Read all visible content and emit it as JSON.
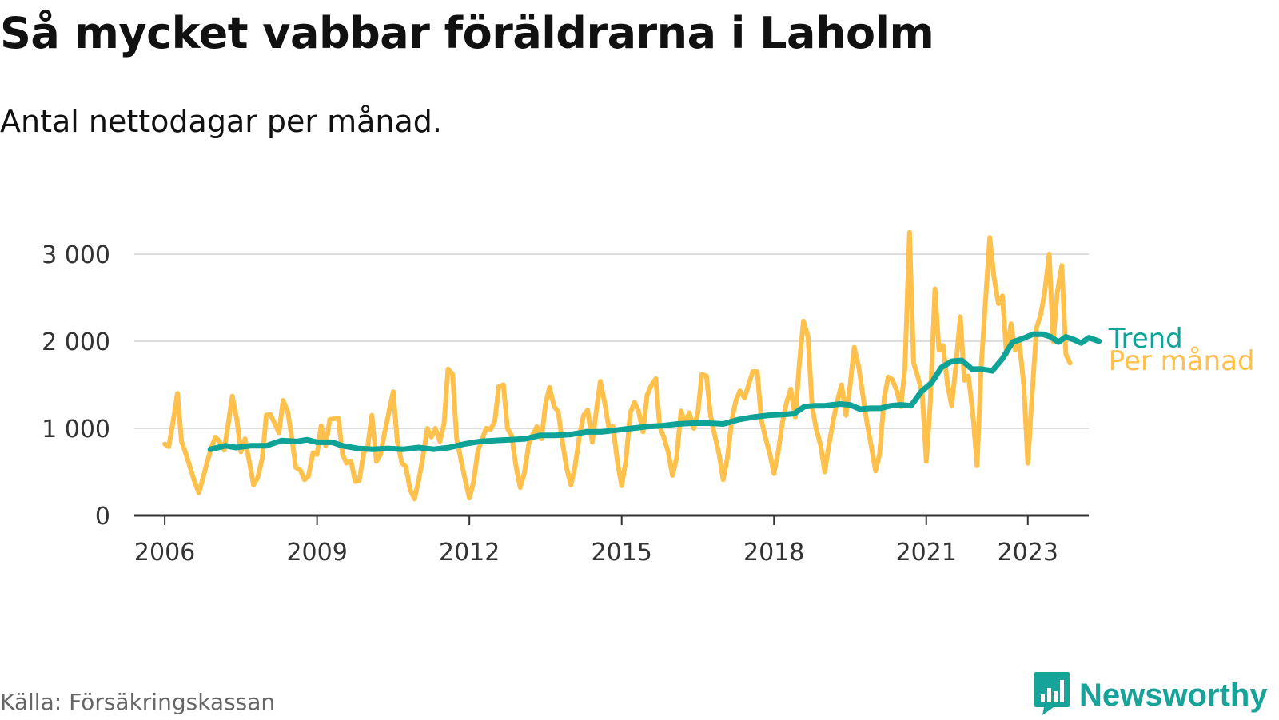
{
  "title": "Så mycket vabbar föräldrarna i Laholm",
  "subtitle": "Antal nettodagar per månad.",
  "source": "Källa: Försäkringskassan",
  "brand": {
    "name": "Newsworthy",
    "icon": "newsworthy-logo-icon",
    "color": "#16a39a"
  },
  "colors": {
    "monthly": "#ffc04c",
    "trend": "#0fa296",
    "grid": "#dddddd",
    "axis": "#333333"
  },
  "chart_data": {
    "type": "line",
    "title": "Så mycket vabbar föräldrarna i Laholm",
    "subtitle": "Antal nettodagar per månad.",
    "xlabel": "",
    "ylabel": "",
    "xlim": [
      2005.4,
      2024.2
    ],
    "ylim": [
      0,
      3000
    ],
    "x_ticks": [
      2006,
      2009,
      2012,
      2015,
      2018,
      2021,
      2023
    ],
    "x_tick_labels": [
      "2006",
      "2009",
      "2012",
      "2015",
      "2018",
      "2021",
      "2023"
    ],
    "y_ticks": [
      0,
      1000,
      2000,
      3000
    ],
    "y_tick_labels": [
      "0",
      "1 000",
      "2 000",
      "3 000"
    ],
    "grid": true,
    "series": [
      {
        "name": "Per månad",
        "color": "#ffc04c",
        "points": [
          [
            2006.0,
            820
          ],
          [
            2006.08,
            790
          ],
          [
            2006.17,
            1100
          ],
          [
            2006.25,
            1400
          ],
          [
            2006.33,
            850
          ],
          [
            2006.42,
            700
          ],
          [
            2006.5,
            550
          ],
          [
            2006.58,
            400
          ],
          [
            2006.67,
            260
          ],
          [
            2006.75,
            420
          ],
          [
            2006.83,
            600
          ],
          [
            2006.92,
            780
          ],
          [
            2007.0,
            900
          ],
          [
            2007.08,
            850
          ],
          [
            2007.17,
            750
          ],
          [
            2007.25,
            1050
          ],
          [
            2007.33,
            1370
          ],
          [
            2007.42,
            1100
          ],
          [
            2007.5,
            730
          ],
          [
            2007.58,
            880
          ],
          [
            2007.67,
            600
          ],
          [
            2007.75,
            350
          ],
          [
            2007.83,
            430
          ],
          [
            2007.92,
            650
          ],
          [
            2008.0,
            1150
          ],
          [
            2008.08,
            1160
          ],
          [
            2008.17,
            1050
          ],
          [
            2008.25,
            950
          ],
          [
            2008.33,
            1320
          ],
          [
            2008.42,
            1200
          ],
          [
            2008.5,
            900
          ],
          [
            2008.58,
            550
          ],
          [
            2008.67,
            520
          ],
          [
            2008.75,
            410
          ],
          [
            2008.83,
            450
          ],
          [
            2008.92,
            720
          ],
          [
            2009.0,
            700
          ],
          [
            2009.08,
            1030
          ],
          [
            2009.17,
            800
          ],
          [
            2009.25,
            1100
          ],
          [
            2009.33,
            1110
          ],
          [
            2009.42,
            1120
          ],
          [
            2009.5,
            700
          ],
          [
            2009.58,
            600
          ],
          [
            2009.67,
            620
          ],
          [
            2009.75,
            390
          ],
          [
            2009.83,
            400
          ],
          [
            2009.92,
            720
          ],
          [
            2010.0,
            800
          ],
          [
            2010.08,
            1150
          ],
          [
            2010.17,
            620
          ],
          [
            2010.25,
            700
          ],
          [
            2010.33,
            950
          ],
          [
            2010.42,
            1200
          ],
          [
            2010.5,
            1420
          ],
          [
            2010.58,
            850
          ],
          [
            2010.67,
            600
          ],
          [
            2010.75,
            560
          ],
          [
            2010.83,
            300
          ],
          [
            2010.92,
            190
          ],
          [
            2011.0,
            400
          ],
          [
            2011.08,
            650
          ],
          [
            2011.17,
            1000
          ],
          [
            2011.25,
            900
          ],
          [
            2011.33,
            1000
          ],
          [
            2011.42,
            850
          ],
          [
            2011.5,
            1050
          ],
          [
            2011.58,
            1680
          ],
          [
            2011.67,
            1620
          ],
          [
            2011.75,
            880
          ],
          [
            2011.83,
            650
          ],
          [
            2011.92,
            400
          ],
          [
            2012.0,
            200
          ],
          [
            2012.08,
            380
          ],
          [
            2012.17,
            750
          ],
          [
            2012.25,
            870
          ],
          [
            2012.33,
            1000
          ],
          [
            2012.42,
            990
          ],
          [
            2012.5,
            1080
          ],
          [
            2012.58,
            1480
          ],
          [
            2012.67,
            1500
          ],
          [
            2012.75,
            1000
          ],
          [
            2012.83,
            920
          ],
          [
            2012.92,
            560
          ],
          [
            2013.0,
            320
          ],
          [
            2013.08,
            480
          ],
          [
            2013.17,
            820
          ],
          [
            2013.25,
            930
          ],
          [
            2013.33,
            1020
          ],
          [
            2013.42,
            880
          ],
          [
            2013.5,
            1280
          ],
          [
            2013.58,
            1470
          ],
          [
            2013.67,
            1250
          ],
          [
            2013.75,
            1190
          ],
          [
            2013.83,
            850
          ],
          [
            2013.92,
            530
          ],
          [
            2014.0,
            350
          ],
          [
            2014.08,
            560
          ],
          [
            2014.17,
            920
          ],
          [
            2014.25,
            1150
          ],
          [
            2014.33,
            1210
          ],
          [
            2014.42,
            840
          ],
          [
            2014.5,
            1200
          ],
          [
            2014.58,
            1540
          ],
          [
            2014.67,
            1280
          ],
          [
            2014.75,
            1000
          ],
          [
            2014.83,
            1020
          ],
          [
            2014.92,
            600
          ],
          [
            2015.0,
            340
          ],
          [
            2015.08,
            620
          ],
          [
            2015.17,
            1180
          ],
          [
            2015.25,
            1300
          ],
          [
            2015.33,
            1200
          ],
          [
            2015.42,
            960
          ],
          [
            2015.5,
            1380
          ],
          [
            2015.58,
            1490
          ],
          [
            2015.67,
            1570
          ],
          [
            2015.75,
            1020
          ],
          [
            2015.83,
            900
          ],
          [
            2015.92,
            720
          ],
          [
            2016.0,
            460
          ],
          [
            2016.08,
            650
          ],
          [
            2016.17,
            1200
          ],
          [
            2016.25,
            1050
          ],
          [
            2016.33,
            1180
          ],
          [
            2016.42,
            1000
          ],
          [
            2016.5,
            1180
          ],
          [
            2016.58,
            1620
          ],
          [
            2016.67,
            1600
          ],
          [
            2016.75,
            1150
          ],
          [
            2016.83,
            930
          ],
          [
            2016.92,
            700
          ],
          [
            2017.0,
            410
          ],
          [
            2017.08,
            650
          ],
          [
            2017.17,
            1100
          ],
          [
            2017.25,
            1320
          ],
          [
            2017.33,
            1430
          ],
          [
            2017.42,
            1350
          ],
          [
            2017.5,
            1500
          ],
          [
            2017.58,
            1650
          ],
          [
            2017.67,
            1650
          ],
          [
            2017.75,
            1100
          ],
          [
            2017.83,
            900
          ],
          [
            2017.92,
            700
          ],
          [
            2018.0,
            480
          ],
          [
            2018.08,
            720
          ],
          [
            2018.17,
            1080
          ],
          [
            2018.25,
            1300
          ],
          [
            2018.33,
            1450
          ],
          [
            2018.42,
            1130
          ],
          [
            2018.5,
            1750
          ],
          [
            2018.58,
            2230
          ],
          [
            2018.67,
            2050
          ],
          [
            2018.75,
            1250
          ],
          [
            2018.83,
            1000
          ],
          [
            2018.92,
            800
          ],
          [
            2019.0,
            500
          ],
          [
            2019.08,
            800
          ],
          [
            2019.17,
            1100
          ],
          [
            2019.25,
            1320
          ],
          [
            2019.33,
            1500
          ],
          [
            2019.42,
            1150
          ],
          [
            2019.5,
            1500
          ],
          [
            2019.58,
            1930
          ],
          [
            2019.67,
            1700
          ],
          [
            2019.75,
            1380
          ],
          [
            2019.83,
            1070
          ],
          [
            2019.92,
            780
          ],
          [
            2020.0,
            510
          ],
          [
            2020.08,
            700
          ],
          [
            2020.17,
            1350
          ],
          [
            2020.25,
            1590
          ],
          [
            2020.33,
            1560
          ],
          [
            2020.42,
            1430
          ],
          [
            2020.5,
            1250
          ],
          [
            2020.58,
            1700
          ],
          [
            2020.67,
            3250
          ],
          [
            2020.75,
            1750
          ],
          [
            2020.83,
            1600
          ],
          [
            2020.92,
            1400
          ],
          [
            2021.0,
            620
          ],
          [
            2021.08,
            1300
          ],
          [
            2021.17,
            2600
          ],
          [
            2021.25,
            1900
          ],
          [
            2021.33,
            1950
          ],
          [
            2021.42,
            1500
          ],
          [
            2021.5,
            1260
          ],
          [
            2021.58,
            1700
          ],
          [
            2021.67,
            2280
          ],
          [
            2021.75,
            1550
          ],
          [
            2021.83,
            1600
          ],
          [
            2021.92,
            1150
          ],
          [
            2022.0,
            570
          ],
          [
            2022.08,
            1700
          ],
          [
            2022.17,
            2500
          ],
          [
            2022.25,
            3190
          ],
          [
            2022.33,
            2750
          ],
          [
            2022.42,
            2430
          ],
          [
            2022.5,
            2520
          ],
          [
            2022.58,
            1850
          ],
          [
            2022.67,
            2200
          ],
          [
            2022.75,
            1900
          ],
          [
            2022.83,
            2000
          ],
          [
            2022.92,
            1500
          ],
          [
            2023.0,
            600
          ],
          [
            2023.08,
            1350
          ],
          [
            2023.17,
            2150
          ],
          [
            2023.25,
            2300
          ],
          [
            2023.33,
            2550
          ],
          [
            2023.42,
            3000
          ],
          [
            2023.5,
            2000
          ],
          [
            2023.58,
            2560
          ],
          [
            2023.67,
            2870
          ],
          [
            2023.75,
            1850
          ],
          [
            2023.83,
            1750
          ]
        ]
      },
      {
        "name": "Trend",
        "color": "#0fa296",
        "points": [
          [
            2006.9,
            760
          ],
          [
            2007.2,
            800
          ],
          [
            2007.4,
            780
          ],
          [
            2007.7,
            800
          ],
          [
            2008.0,
            800
          ],
          [
            2008.3,
            860
          ],
          [
            2008.6,
            850
          ],
          [
            2008.8,
            870
          ],
          [
            2009.0,
            840
          ],
          [
            2009.3,
            840
          ],
          [
            2009.5,
            800
          ],
          [
            2009.8,
            770
          ],
          [
            2010.1,
            760
          ],
          [
            2010.4,
            770
          ],
          [
            2010.7,
            760
          ],
          [
            2011.0,
            780
          ],
          [
            2011.3,
            760
          ],
          [
            2011.6,
            780
          ],
          [
            2011.9,
            820
          ],
          [
            2012.2,
            850
          ],
          [
            2012.5,
            860
          ],
          [
            2012.8,
            870
          ],
          [
            2013.1,
            880
          ],
          [
            2013.4,
            920
          ],
          [
            2013.7,
            920
          ],
          [
            2014.0,
            930
          ],
          [
            2014.3,
            960
          ],
          [
            2014.6,
            960
          ],
          [
            2014.9,
            980
          ],
          [
            2015.2,
            1000
          ],
          [
            2015.5,
            1020
          ],
          [
            2015.8,
            1030
          ],
          [
            2016.1,
            1050
          ],
          [
            2016.4,
            1060
          ],
          [
            2016.7,
            1060
          ],
          [
            2017.0,
            1050
          ],
          [
            2017.3,
            1100
          ],
          [
            2017.6,
            1130
          ],
          [
            2017.9,
            1150
          ],
          [
            2018.2,
            1160
          ],
          [
            2018.4,
            1170
          ],
          [
            2018.6,
            1250
          ],
          [
            2018.8,
            1260
          ],
          [
            2019.0,
            1260
          ],
          [
            2019.3,
            1280
          ],
          [
            2019.5,
            1270
          ],
          [
            2019.7,
            1220
          ],
          [
            2019.9,
            1230
          ],
          [
            2020.1,
            1230
          ],
          [
            2020.3,
            1260
          ],
          [
            2020.5,
            1270
          ],
          [
            2020.7,
            1260
          ],
          [
            2020.9,
            1420
          ],
          [
            2021.1,
            1520
          ],
          [
            2021.3,
            1700
          ],
          [
            2021.5,
            1770
          ],
          [
            2021.7,
            1780
          ],
          [
            2021.9,
            1680
          ],
          [
            2022.1,
            1680
          ],
          [
            2022.3,
            1660
          ],
          [
            2022.5,
            1800
          ],
          [
            2022.7,
            1990
          ],
          [
            2022.9,
            2030
          ],
          [
            2023.1,
            2080
          ],
          [
            2023.3,
            2080
          ],
          [
            2023.45,
            2050
          ],
          [
            2023.6,
            1990
          ],
          [
            2023.75,
            2050
          ],
          [
            2023.9,
            2020
          ],
          [
            2024.05,
            1980
          ],
          [
            2024.2,
            2040
          ],
          [
            2024.4,
            2000
          ]
        ]
      }
    ]
  }
}
